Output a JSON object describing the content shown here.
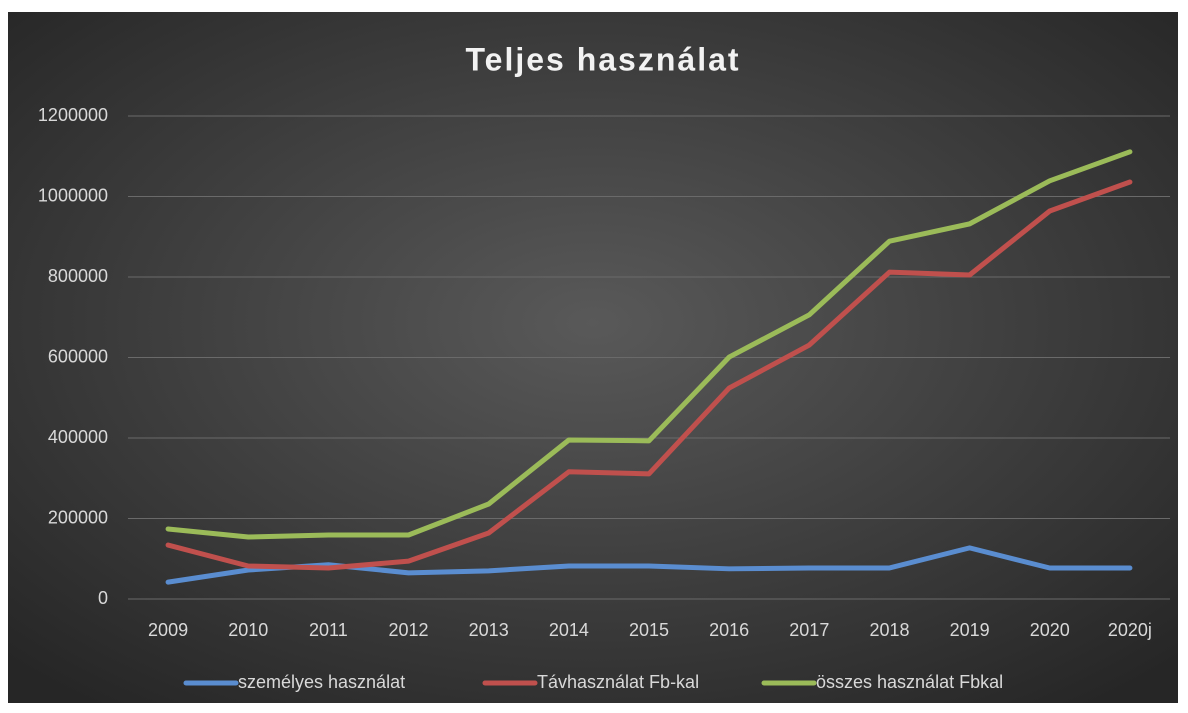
{
  "chart_data": {
    "type": "line",
    "title": "Teljes használat",
    "categories": [
      "2009",
      "2010",
      "2011",
      "2012",
      "2013",
      "2014",
      "2015",
      "2016",
      "2017",
      "2018",
      "2019",
      "2020",
      "2020j"
    ],
    "series": [
      {
        "name": "személyes használat",
        "color": "#5a8dd0",
        "values": [
          42000,
          72000,
          85000,
          65000,
          70000,
          82000,
          82000,
          75000,
          77000,
          77000,
          127000,
          77000,
          77000
        ]
      },
      {
        "name": "Távhasználat Fb-kal",
        "color": "#c0504d",
        "values": [
          134000,
          82000,
          77000,
          94000,
          164000,
          316000,
          311000,
          524000,
          631000,
          812000,
          805000,
          964000,
          1036000
        ]
      },
      {
        "name": "összes használat Fbkal",
        "color": "#9bbb59",
        "values": [
          174000,
          154000,
          159000,
          159000,
          236000,
          395000,
          393000,
          601000,
          706000,
          889000,
          932000,
          1039000,
          1111000
        ]
      }
    ],
    "ylim": [
      0,
      1200000
    ],
    "yticks": [
      0,
      200000,
      400000,
      600000,
      800000,
      1000000,
      1200000
    ],
    "grid": true,
    "legend": "bottom"
  }
}
